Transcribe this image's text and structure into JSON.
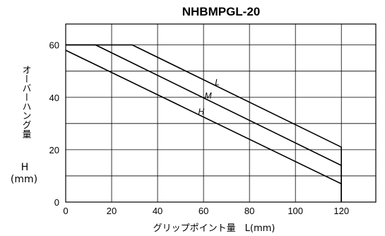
{
  "chart_data": {
    "type": "line",
    "title": "NHBMPGL-20",
    "xlabel": "グリップポイント量　L(mm)",
    "ylabel_vertical": "オーバーハング量",
    "ylabel_symbol": "H",
    "ylabel_unit": "(mm)",
    "xlim": [
      0,
      135
    ],
    "ylim": [
      0,
      68
    ],
    "x_ticks": [
      0,
      20,
      40,
      60,
      80,
      100,
      120
    ],
    "y_ticks": [
      0,
      20,
      40,
      60
    ],
    "x_grid": [
      0,
      20,
      40,
      60,
      80,
      100,
      120,
      135
    ],
    "y_grid": [
      0,
      10,
      20,
      30,
      40,
      50,
      60,
      68
    ],
    "grid": true,
    "series": [
      {
        "name": "L",
        "x": [
          0,
          29,
          120,
          120
        ],
        "y": [
          60,
          60,
          21,
          0
        ]
      },
      {
        "name": "M",
        "x": [
          0,
          13,
          120,
          120
        ],
        "y": [
          60,
          60,
          14,
          0
        ]
      },
      {
        "name": "H",
        "x": [
          0,
          120,
          120
        ],
        "y": [
          58,
          7,
          0
        ]
      }
    ],
    "annotations": [
      {
        "text": "L",
        "series": "L",
        "x": 66
      },
      {
        "text": "M",
        "series": "M",
        "x": 62
      },
      {
        "text": "H",
        "series": "H",
        "x": 59
      }
    ]
  }
}
